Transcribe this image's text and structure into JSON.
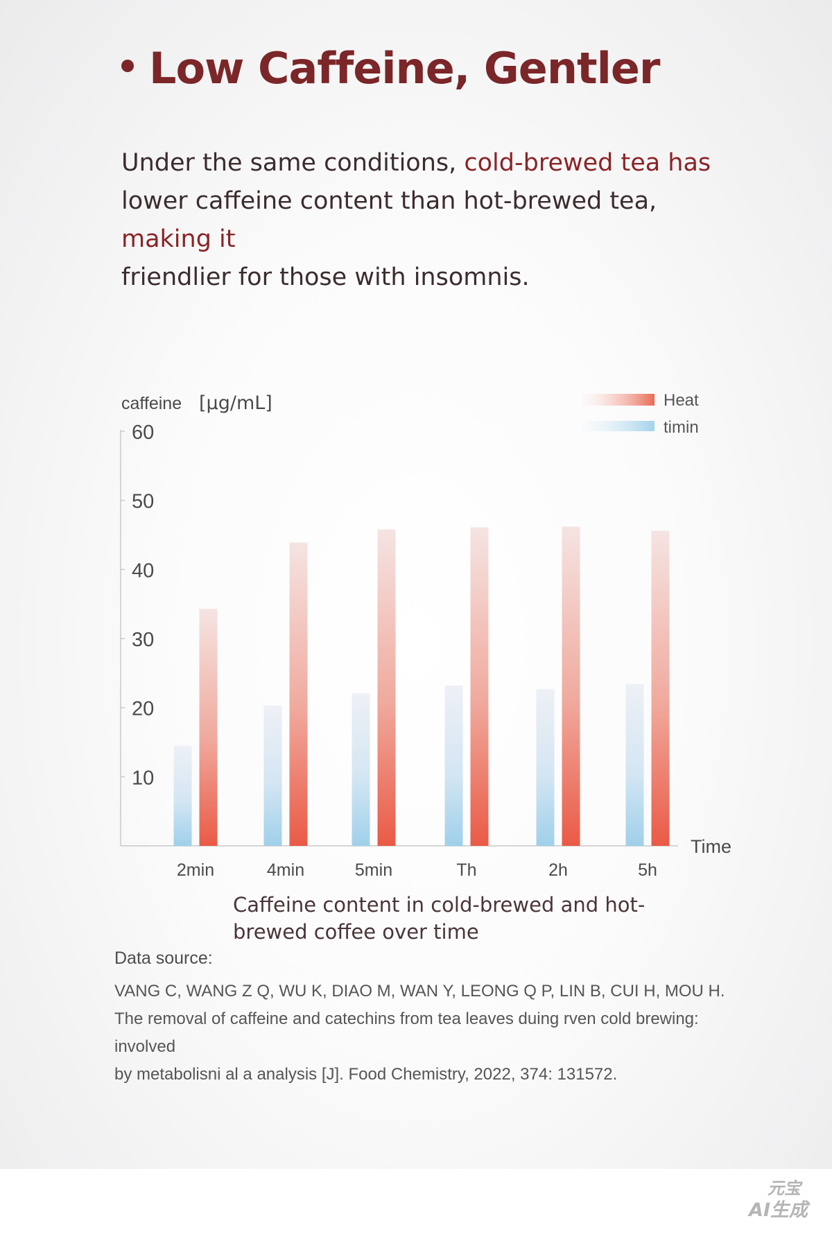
{
  "header": {
    "title": "Low Caffeine, Gentler"
  },
  "intro": {
    "part1": "Under the same conditions, ",
    "highlight1": "cold-brewed tea has",
    "part2": "lower caffeine content than hot-brewed tea, ",
    "highlight2": "making it",
    "part3": "friendlier for those with insomnis."
  },
  "chart_data": {
    "type": "bar",
    "categories": [
      "2min",
      "4min",
      "5min",
      "Th",
      "2h",
      "5h"
    ],
    "series": [
      {
        "name": "timin",
        "values": [
          14.5,
          20.3,
          22.1,
          23.2,
          22.7,
          23.4
        ],
        "color": "#9fd0ea"
      },
      {
        "name": "Heat",
        "values": [
          34.3,
          43.9,
          45.8,
          46.1,
          46.2,
          45.6
        ],
        "color": "#ea5a46"
      }
    ],
    "ylabel": "caffeine",
    "yunit": "[µg/mL]",
    "xlabel": "Time",
    "ylim": [
      0,
      60
    ],
    "yticks": [
      10,
      20,
      30,
      40,
      50,
      60
    ],
    "grid": false,
    "legend": "top-right",
    "caption": "Caffeine content in cold-brewed and hot-brewed coffee over time"
  },
  "source": {
    "label": "Data source:",
    "authors": "VANG  C, WANG Z Q, WU K, DIAO M, WAN Y, LEONG Q P, LIN B, CUI H, MOU H.",
    "title_line": "The removal of caffeine and catechins from tea leaves duing rven cold  brewing: involved",
    "journal_line": "by  metabolisni al a analysis [J]. Food Chemistry,  2022, 374:  131572."
  },
  "watermark": {
    "line1": "元宝",
    "line2": "AI生成"
  }
}
